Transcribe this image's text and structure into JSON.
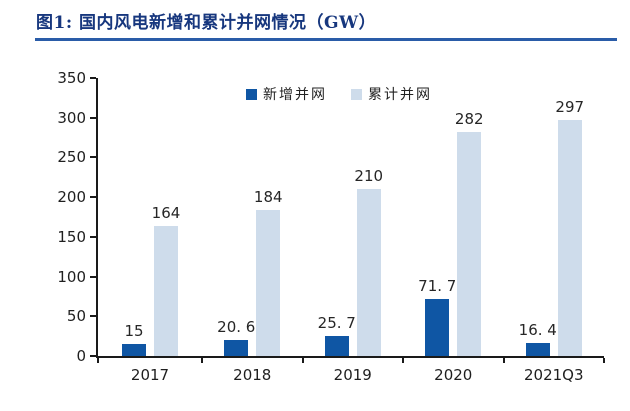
{
  "page": {
    "background": "#ffffff"
  },
  "header": {
    "title": "图1: 国内风电新增和累计并网情况（GW）",
    "title_color": "#17377E",
    "rule_color": "#2A5CA8"
  },
  "chart_data": {
    "type": "bar",
    "title": "国内风电新增和累计并网情况（GW）",
    "categories": [
      "2017",
      "2018",
      "2019",
      "2020",
      "2021Q3"
    ],
    "series": [
      {
        "name": "新增并网",
        "color": "#0F56A4",
        "values": [
          15,
          20.6,
          25.7,
          71.7,
          16.4
        ],
        "labels": [
          "15",
          "20. 6",
          "25. 7",
          "71. 7",
          "16. 4"
        ]
      },
      {
        "name": "累计并网",
        "color": "#CEDCEB",
        "values": [
          164,
          184,
          210,
          282,
          297
        ],
        "labels": [
          "164",
          "184",
          "210",
          "282",
          "297"
        ]
      }
    ],
    "ylim": [
      0,
      350
    ],
    "yticks": [
      0,
      50,
      100,
      150,
      200,
      250,
      300,
      350
    ],
    "ytick_step": 50,
    "legend_position": "top-center",
    "grid": false,
    "axis_color": "#1a1a1a",
    "tick_label_color": "#1f1f1f",
    "value_label_color": "#262626",
    "legend_text_color": "#222222"
  }
}
